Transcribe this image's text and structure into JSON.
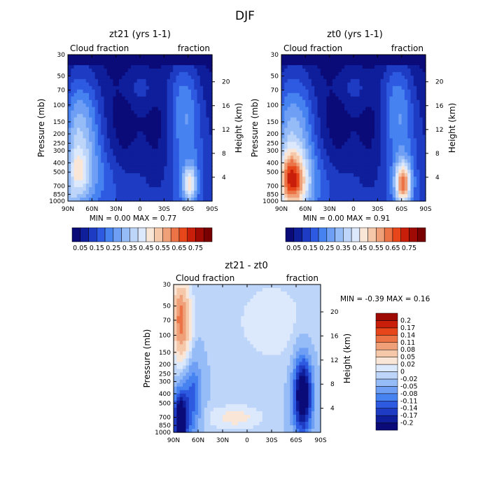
{
  "figure_title": "DJF",
  "colors": {
    "absolute_scale": [
      "#0a0a78",
      "#0f1e9b",
      "#1e3cc3",
      "#2d5ae1",
      "#4682f0",
      "#6e9ff5",
      "#96bcf8",
      "#bed5fa",
      "#dce8fc",
      "#fae6d7",
      "#f5c8aa",
      "#f0a078",
      "#eb7346",
      "#e64619",
      "#c81e0a",
      "#a00a05",
      "#780000"
    ],
    "difference_scale": [
      "#0a0a78",
      "#0f1e9b",
      "#1e3cc3",
      "#2d5ae1",
      "#4682f0",
      "#6e9ff5",
      "#96bcf8",
      "#bed5fa",
      "#dce8fc",
      "#fae6d7",
      "#f5c8aa",
      "#f0a078",
      "#eb7346",
      "#e64619",
      "#c81e0a",
      "#a00a05"
    ]
  },
  "chart_data": [
    {
      "id": "zt21",
      "type": "heatmap",
      "title": "zt21 (yrs 1-1)",
      "left_label": "Cloud fraction",
      "right_label": "fraction",
      "xlabel": "",
      "ylabel": "Pressure (mb)",
      "y2label": "Height (km)",
      "x_tick_labels": [
        "90N",
        "60N",
        "30N",
        "0",
        "30S",
        "60S",
        "90S"
      ],
      "p_tick_labels": [
        "30",
        "50",
        "70",
        "100",
        "150",
        "200",
        "250",
        "300",
        "400",
        "500",
        "700",
        "850",
        "1000"
      ],
      "p_ticks": [
        30,
        50,
        70,
        100,
        150,
        200,
        250,
        300,
        400,
        500,
        700,
        850,
        1000
      ],
      "z_tick_labels": [
        "20",
        "16",
        "12",
        "8",
        "4"
      ],
      "z_ticks": [
        20,
        16,
        12,
        8,
        4
      ],
      "ylim": [
        1000,
        30
      ],
      "stats": "MIN =    0.00   MAX =    0.77",
      "min": 0.0,
      "max": 0.77,
      "levels": [
        0.05,
        0.1,
        0.15,
        0.2,
        0.25,
        0.3,
        0.35,
        0.4,
        0.45,
        0.5,
        0.55,
        0.6,
        0.65,
        0.7,
        0.75,
        0.8
      ],
      "colorbar_labels": [
        "0.05",
        "0.15",
        "0.25",
        "0.35",
        "0.45",
        "0.55",
        "0.65",
        "0.75"
      ],
      "scale": "absolute"
    },
    {
      "id": "zt0",
      "type": "heatmap",
      "title": "zt0 (yrs 1-1)",
      "left_label": "Cloud fraction",
      "right_label": "fraction",
      "xlabel": "",
      "ylabel": "Pressure (mb)",
      "y2label": "Height (km)",
      "x_tick_labels": [
        "90N",
        "60N",
        "30N",
        "0",
        "30S",
        "60S",
        "90S"
      ],
      "p_tick_labels": [
        "30",
        "50",
        "70",
        "100",
        "150",
        "200",
        "250",
        "300",
        "400",
        "500",
        "700",
        "850",
        "1000"
      ],
      "p_ticks": [
        30,
        50,
        70,
        100,
        150,
        200,
        250,
        300,
        400,
        500,
        700,
        850,
        1000
      ],
      "z_tick_labels": [
        "20",
        "16",
        "12",
        "8",
        "4"
      ],
      "z_ticks": [
        20,
        16,
        12,
        8,
        4
      ],
      "ylim": [
        1000,
        30
      ],
      "stats": "MIN =    0.00   MAX =    0.91",
      "min": 0.0,
      "max": 0.91,
      "levels": [
        0.05,
        0.1,
        0.15,
        0.2,
        0.25,
        0.3,
        0.35,
        0.4,
        0.45,
        0.5,
        0.55,
        0.6,
        0.65,
        0.7,
        0.75,
        0.8
      ],
      "colorbar_labels": [
        "0.05",
        "0.15",
        "0.25",
        "0.35",
        "0.45",
        "0.55",
        "0.65",
        "0.75"
      ],
      "scale": "absolute"
    },
    {
      "id": "diff",
      "type": "heatmap",
      "title": "zt21 - zt0",
      "left_label": "Cloud fraction",
      "right_label": "fraction",
      "xlabel": "",
      "ylabel": "Pressure (mb)",
      "y2label": "Height (km)",
      "x_tick_labels": [
        "90N",
        "60N",
        "30N",
        "0",
        "30S",
        "60S",
        "90S"
      ],
      "p_tick_labels": [
        "30",
        "50",
        "70",
        "100",
        "150",
        "200",
        "250",
        "300",
        "400",
        "500",
        "700",
        "850",
        "1000"
      ],
      "p_ticks": [
        30,
        50,
        70,
        100,
        150,
        200,
        250,
        300,
        400,
        500,
        700,
        850,
        1000
      ],
      "z_tick_labels": [
        "20",
        "16",
        "12",
        "8",
        "4"
      ],
      "z_ticks": [
        20,
        16,
        12,
        8,
        4
      ],
      "ylim": [
        1000,
        30
      ],
      "stats": "MIN =   -0.39   MAX =    0.16",
      "min": -0.39,
      "max": 0.16,
      "levels": [
        -0.2,
        -0.17,
        -0.14,
        -0.11,
        -0.08,
        -0.05,
        -0.02,
        0,
        0.02,
        0.05,
        0.08,
        0.11,
        0.14,
        0.17,
        0.2
      ],
      "colorbar_labels": [
        "0.2",
        "0.17",
        "0.14",
        "0.11",
        "0.08",
        "0.05",
        "0.02",
        "0",
        "-0.02",
        "-0.05",
        "-0.08",
        "-0.11",
        "-0.14",
        "-0.17",
        "-0.2"
      ],
      "scale": "difference"
    }
  ]
}
